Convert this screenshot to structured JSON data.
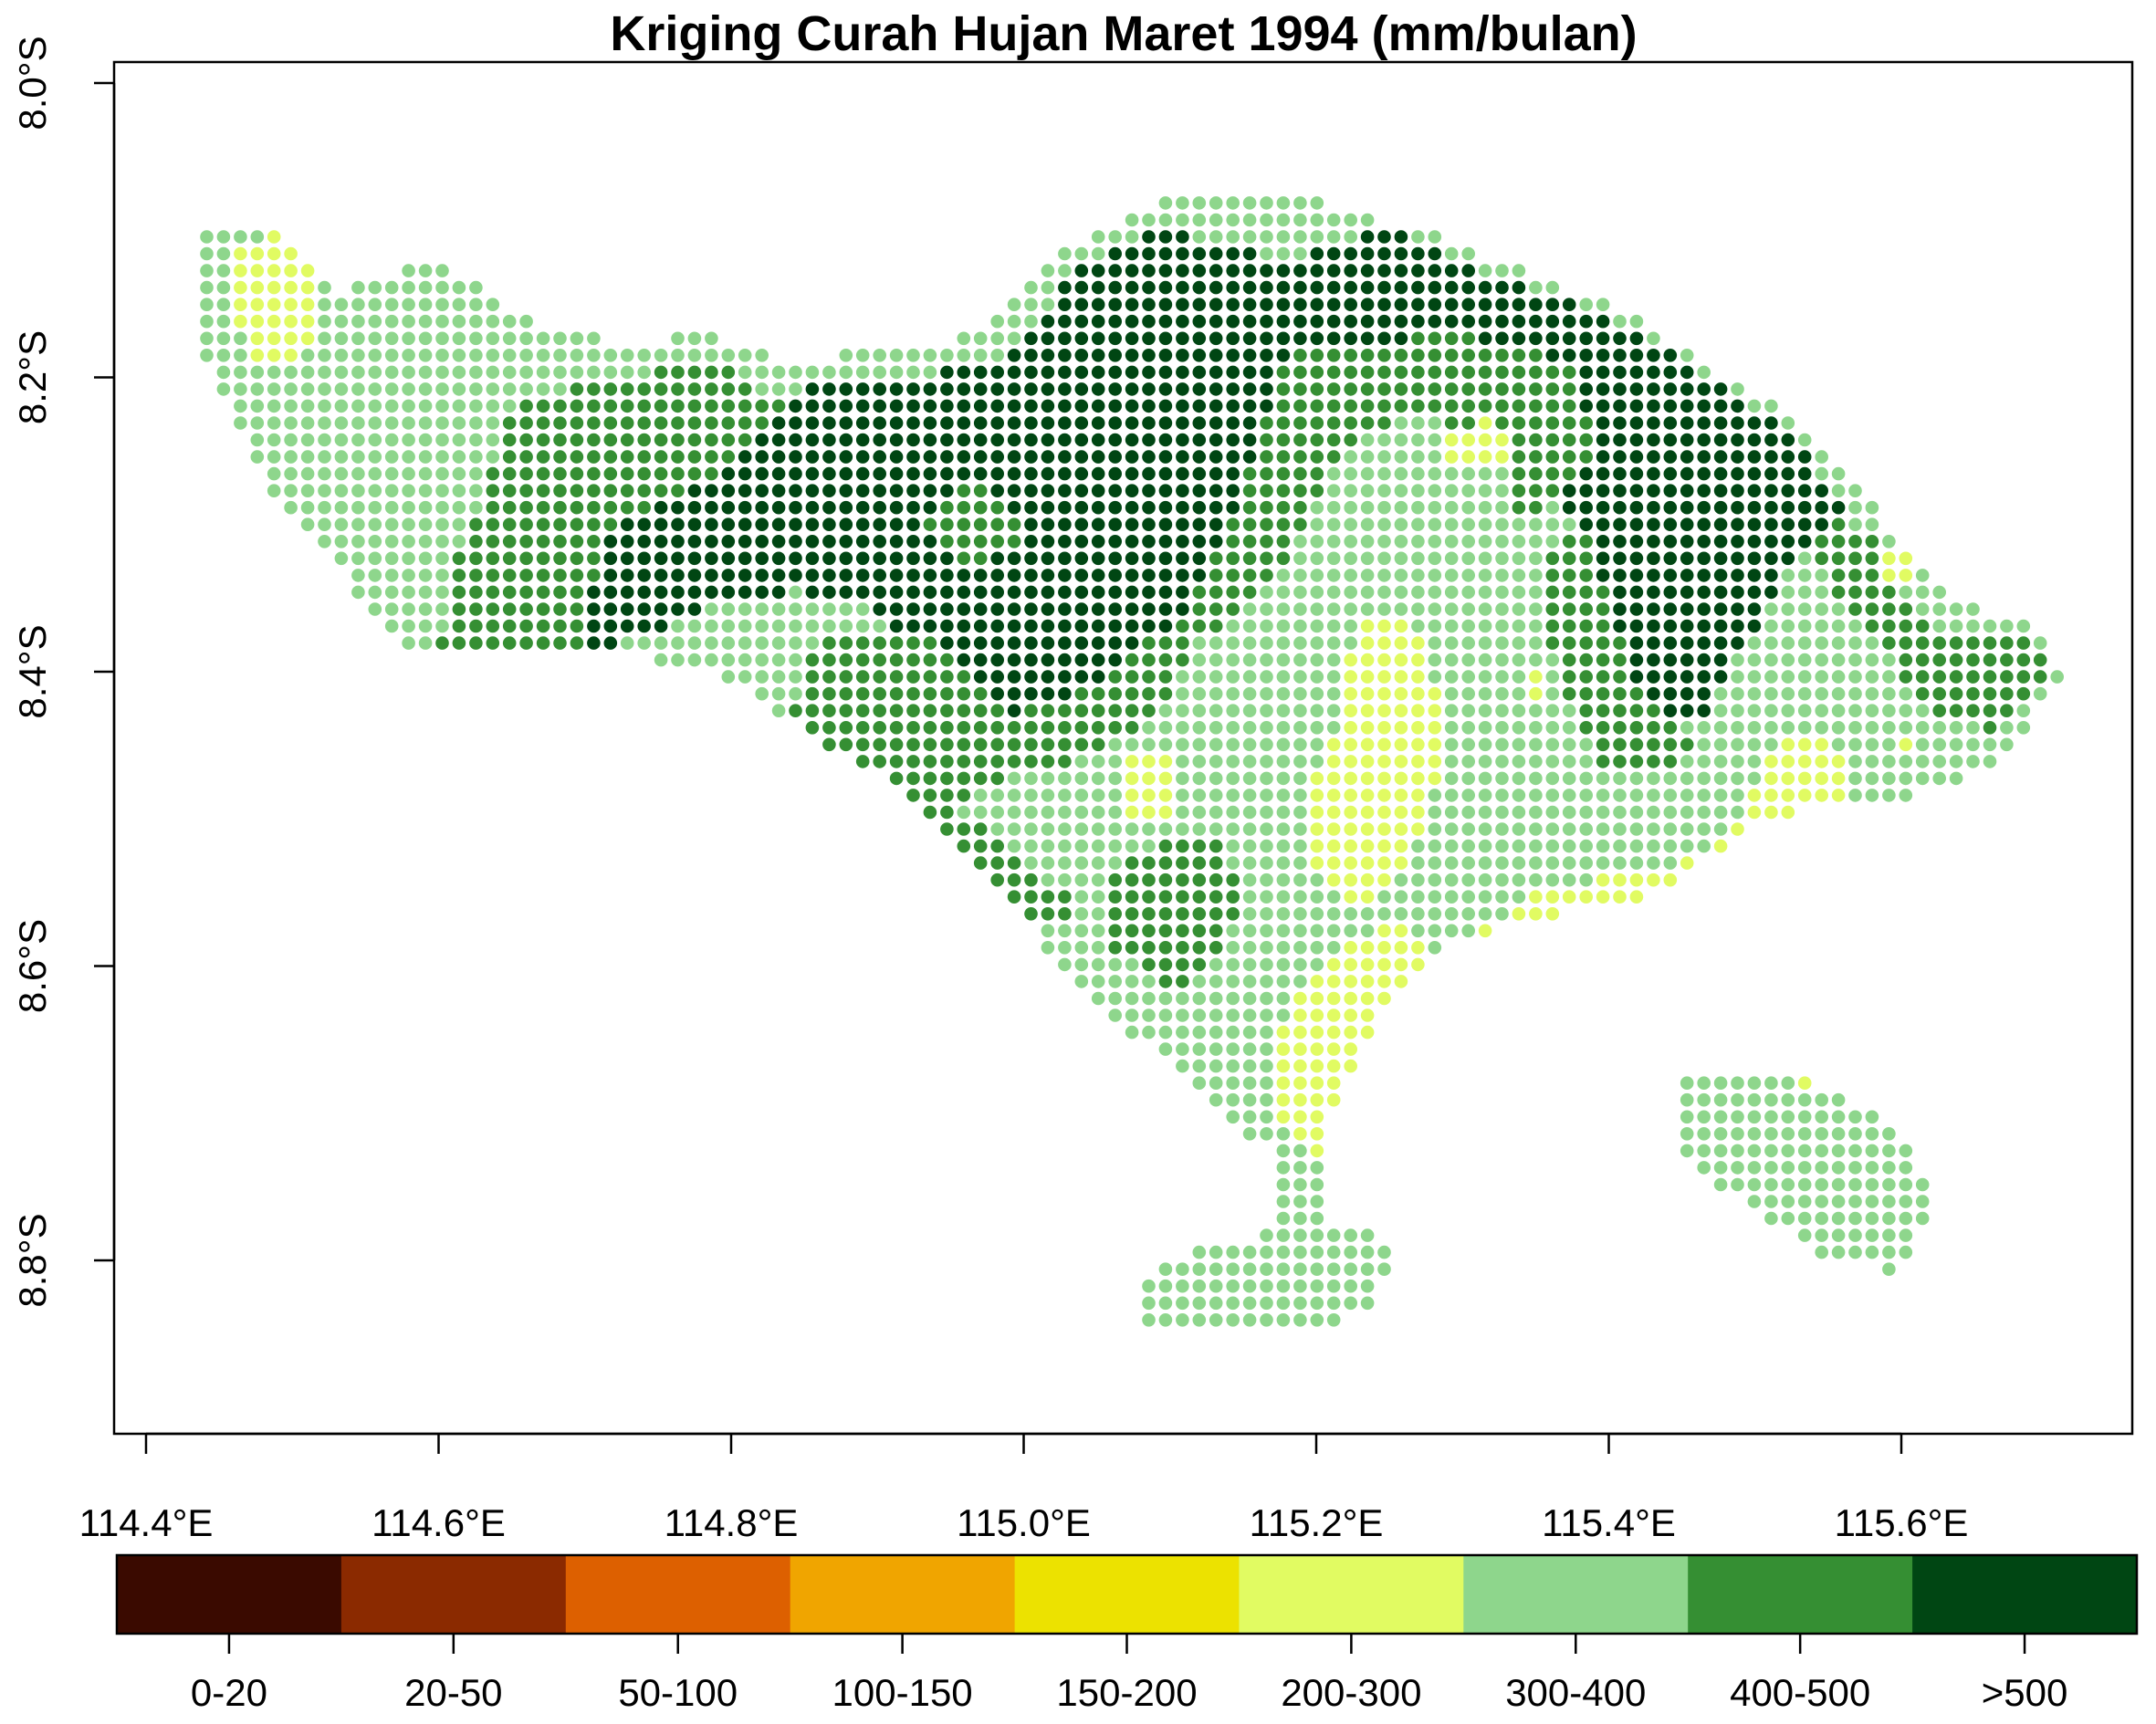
{
  "chart_data": {
    "type": "heatmap",
    "title": "Kriging Curah Hujan Maret 1994 (mm/bulan)",
    "xlabel": "",
    "ylabel": "",
    "xlim": [
      114.365,
      115.75
    ],
    "ylim": [
      -8.93,
      -7.98
    ],
    "x_ticks": [
      114.4,
      114.6,
      114.8,
      115.0,
      115.2,
      115.4,
      115.6
    ],
    "x_tick_labels": [
      "114.4°E",
      "114.6°E",
      "114.8°E",
      "115.0°E",
      "115.2°E",
      "115.4°E",
      "115.6°E"
    ],
    "y_ticks": [
      -8.0,
      -8.2,
      -8.4,
      -8.6,
      -8.8
    ],
    "y_tick_labels": [
      "8.0°S",
      "8.2°S",
      "8.4°S",
      "8.6°S",
      "8.8°S"
    ],
    "grid": false,
    "legend": {
      "position": "bottom",
      "classes": [
        "0-20",
        "20-50",
        "50-100",
        "100-150",
        "150-200",
        "200-300",
        "300-400",
        "400-500",
        ">500"
      ],
      "colors": [
        "#3a0a00",
        "#8b2a00",
        "#dd6000",
        "#f0a500",
        "#ece200",
        "#e1fb62",
        "#8ed68c",
        "#358f33",
        "#004613"
      ]
    },
    "grid_step_deg": 0.0115,
    "land_polygons": [
      [
        [
          114.435,
          -8.1
        ],
        [
          114.49,
          -8.1
        ],
        [
          114.53,
          -8.14
        ],
        [
          114.6,
          -8.12
        ],
        [
          114.66,
          -8.16
        ],
        [
          114.73,
          -8.18
        ],
        [
          114.78,
          -8.17
        ],
        [
          114.84,
          -8.19
        ],
        [
          114.91,
          -8.18
        ],
        [
          114.97,
          -8.17
        ],
        [
          115.02,
          -8.12
        ],
        [
          115.09,
          -8.08
        ],
        [
          115.13,
          -8.07
        ],
        [
          115.2,
          -8.08
        ],
        [
          115.27,
          -8.1
        ],
        [
          115.35,
          -8.13
        ],
        [
          115.42,
          -8.16
        ],
        [
          115.48,
          -8.2
        ],
        [
          115.53,
          -8.23
        ],
        [
          115.58,
          -8.28
        ],
        [
          115.6,
          -8.32
        ],
        [
          115.64,
          -8.35
        ],
        [
          115.69,
          -8.37
        ],
        [
          115.71,
          -8.4
        ],
        [
          115.69,
          -8.43
        ],
        [
          115.67,
          -8.46
        ],
        [
          115.6,
          -8.49
        ],
        [
          115.55,
          -8.49
        ],
        [
          115.5,
          -8.5
        ],
        [
          115.44,
          -8.55
        ],
        [
          115.38,
          -8.56
        ],
        [
          115.3,
          -8.58
        ],
        [
          115.26,
          -8.61
        ],
        [
          115.23,
          -8.66
        ],
        [
          115.21,
          -8.7
        ],
        [
          115.19,
          -8.73
        ],
        [
          115.16,
          -8.72
        ],
        [
          115.12,
          -8.69
        ],
        [
          115.08,
          -8.65
        ],
        [
          115.04,
          -8.62
        ],
        [
          115.01,
          -8.58
        ],
        [
          114.97,
          -8.53
        ],
        [
          114.92,
          -8.48
        ],
        [
          114.85,
          -8.44
        ],
        [
          114.79,
          -8.4
        ],
        [
          114.73,
          -8.39
        ],
        [
          114.65,
          -8.39
        ],
        [
          114.58,
          -8.39
        ],
        [
          114.53,
          -8.33
        ],
        [
          114.48,
          -8.27
        ],
        [
          114.45,
          -8.21
        ],
        [
          114.435,
          -8.17
        ]
      ],
      [
        [
          115.17,
          -8.72
        ],
        [
          115.205,
          -8.72
        ],
        [
          115.2,
          -8.77
        ],
        [
          115.23,
          -8.78
        ],
        [
          115.26,
          -8.79
        ],
        [
          115.24,
          -8.83
        ],
        [
          115.2,
          -8.85
        ],
        [
          115.16,
          -8.85
        ],
        [
          115.12,
          -8.85
        ],
        [
          115.08,
          -8.84
        ],
        [
          115.08,
          -8.81
        ],
        [
          115.12,
          -8.79
        ],
        [
          115.17,
          -8.78
        ]
      ],
      [
        [
          115.44,
          -8.68
        ],
        [
          115.48,
          -8.67
        ],
        [
          115.54,
          -8.68
        ],
        [
          115.58,
          -8.7
        ],
        [
          115.61,
          -8.73
        ],
        [
          115.62,
          -8.77
        ],
        [
          115.6,
          -8.81
        ],
        [
          115.55,
          -8.8
        ],
        [
          115.49,
          -8.76
        ],
        [
          115.45,
          -8.73
        ]
      ]
    ],
    "zones": [
      {
        "class": ">500",
        "polygon": [
          [
            114.71,
            -8.29
          ],
          [
            114.76,
            -8.26
          ],
          [
            114.8,
            -8.22
          ],
          [
            114.86,
            -8.205
          ],
          [
            114.95,
            -8.195
          ],
          [
            115.0,
            -8.18
          ],
          [
            115.03,
            -8.13
          ],
          [
            115.09,
            -8.1
          ],
          [
            115.14,
            -8.11
          ],
          [
            115.18,
            -8.12
          ],
          [
            115.25,
            -8.1
          ],
          [
            115.32,
            -8.13
          ],
          [
            115.4,
            -8.16
          ],
          [
            115.47,
            -8.2
          ],
          [
            115.53,
            -8.24
          ],
          [
            115.56,
            -8.29
          ],
          [
            115.52,
            -8.33
          ],
          [
            115.5,
            -8.37
          ],
          [
            115.48,
            -8.4
          ],
          [
            115.47,
            -8.43
          ],
          [
            115.42,
            -8.44
          ],
          [
            115.4,
            -8.38
          ],
          [
            115.39,
            -8.31
          ],
          [
            115.34,
            -8.26
          ],
          [
            115.3,
            -8.22
          ],
          [
            115.23,
            -8.21
          ],
          [
            115.21,
            -8.25
          ],
          [
            115.18,
            -8.31
          ],
          [
            115.14,
            -8.36
          ],
          [
            115.1,
            -8.4
          ],
          [
            115.05,
            -8.43
          ],
          [
            114.98,
            -8.44
          ],
          [
            114.95,
            -8.4
          ],
          [
            114.9,
            -8.36
          ],
          [
            114.85,
            -8.345
          ],
          [
            114.8,
            -8.35
          ],
          [
            114.75,
            -8.37
          ],
          [
            114.7,
            -8.39
          ],
          [
            114.67,
            -8.35
          ],
          [
            114.68,
            -8.31
          ]
        ]
      },
      {
        "class": "400-500",
        "polygon": [
          [
            114.63,
            -8.28
          ],
          [
            114.65,
            -8.22
          ],
          [
            114.72,
            -8.2
          ],
          [
            114.79,
            -8.19
          ],
          [
            114.84,
            -8.22
          ],
          [
            114.79,
            -8.27
          ],
          [
            114.72,
            -8.3
          ],
          [
            114.7,
            -8.36
          ],
          [
            114.7,
            -8.395
          ],
          [
            114.6,
            -8.395
          ],
          [
            114.61,
            -8.33
          ]
        ]
      },
      {
        "class": "400-500",
        "polygon": [
          [
            115.18,
            -8.18
          ],
          [
            115.3,
            -8.17
          ],
          [
            115.38,
            -8.19
          ],
          [
            115.39,
            -8.26
          ],
          [
            115.34,
            -8.3
          ],
          [
            115.33,
            -8.26
          ],
          [
            115.27,
            -8.22
          ],
          [
            115.22,
            -8.25
          ],
          [
            115.19,
            -8.3
          ],
          [
            115.17,
            -8.34
          ],
          [
            115.12,
            -8.38
          ],
          [
            115.09,
            -8.43
          ],
          [
            115.04,
            -8.46
          ],
          [
            114.99,
            -8.47
          ],
          [
            114.95,
            -8.49
          ],
          [
            115.0,
            -8.53
          ],
          [
            115.04,
            -8.56
          ],
          [
            115.0,
            -8.58
          ],
          [
            114.96,
            -8.55
          ],
          [
            114.9,
            -8.48
          ],
          [
            114.84,
            -8.44
          ],
          [
            114.86,
            -8.37
          ],
          [
            114.93,
            -8.37
          ],
          [
            114.99,
            -8.43
          ],
          [
            115.05,
            -8.41
          ],
          [
            115.11,
            -8.36
          ],
          [
            115.14,
            -8.3
          ],
          [
            115.16,
            -8.24
          ]
        ]
      },
      {
        "class": "400-500",
        "polygon": [
          [
            114.935,
            -8.3
          ],
          [
            114.96,
            -8.27
          ],
          [
            114.99,
            -8.28
          ],
          [
            115.0,
            -8.31
          ],
          [
            114.97,
            -8.33
          ],
          [
            114.94,
            -8.32
          ]
        ]
      },
      {
        "class": "400-500",
        "polygon": [
          [
            115.36,
            -8.32
          ],
          [
            115.39,
            -8.3
          ],
          [
            115.4,
            -8.36
          ],
          [
            115.42,
            -8.41
          ],
          [
            115.46,
            -8.45
          ],
          [
            115.44,
            -8.47
          ],
          [
            115.39,
            -8.46
          ],
          [
            115.37,
            -8.41
          ],
          [
            115.35,
            -8.36
          ]
        ]
      },
      {
        "class": "400-500",
        "polygon": [
          [
            115.55,
            -8.29
          ],
          [
            115.58,
            -8.31
          ],
          [
            115.59,
            -8.34
          ],
          [
            115.63,
            -8.38
          ],
          [
            115.68,
            -8.375
          ],
          [
            115.71,
            -8.39
          ],
          [
            115.69,
            -8.42
          ],
          [
            115.66,
            -8.44
          ],
          [
            115.62,
            -8.425
          ],
          [
            115.59,
            -8.39
          ],
          [
            115.56,
            -8.36
          ],
          [
            115.54,
            -8.32
          ]
        ]
      },
      {
        "class": "400-500",
        "polygon": [
          [
            115.07,
            -8.53
          ],
          [
            115.11,
            -8.51
          ],
          [
            115.14,
            -8.52
          ],
          [
            115.15,
            -8.56
          ],
          [
            115.13,
            -8.6
          ],
          [
            115.1,
            -8.615
          ],
          [
            115.06,
            -8.59
          ],
          [
            115.05,
            -8.56
          ]
        ]
      },
      {
        "class": "200-300",
        "polygon": [
          [
            114.46,
            -8.11
          ],
          [
            114.49,
            -8.1
          ],
          [
            114.51,
            -8.12
          ],
          [
            114.52,
            -8.17
          ],
          [
            114.5,
            -8.19
          ],
          [
            114.47,
            -8.185
          ],
          [
            114.455,
            -8.15
          ]
        ]
      },
      {
        "class": "200-300",
        "polygon": [
          [
            115.23,
            -8.36
          ],
          [
            115.26,
            -8.36
          ],
          [
            115.28,
            -8.4
          ],
          [
            115.29,
            -8.46
          ],
          [
            115.27,
            -8.51
          ],
          [
            115.25,
            -8.55
          ],
          [
            115.22,
            -8.56
          ],
          [
            115.19,
            -8.53
          ],
          [
            115.19,
            -8.49
          ],
          [
            115.21,
            -8.45
          ],
          [
            115.22,
            -8.4
          ]
        ]
      },
      {
        "class": "200-300",
        "polygon": [
          [
            115.22,
            -8.58
          ],
          [
            115.26,
            -8.57
          ],
          [
            115.28,
            -8.6
          ],
          [
            115.31,
            -8.58
          ],
          [
            115.35,
            -8.55
          ],
          [
            115.4,
            -8.54
          ],
          [
            115.45,
            -8.53
          ],
          [
            115.49,
            -8.5
          ],
          [
            115.51,
            -8.45
          ],
          [
            115.545,
            -8.44
          ],
          [
            115.565,
            -8.47
          ],
          [
            115.56,
            -8.515
          ],
          [
            115.5,
            -8.52
          ],
          [
            115.47,
            -8.55
          ],
          [
            115.42,
            -8.57
          ],
          [
            115.37,
            -8.575
          ],
          [
            115.33,
            -8.59
          ],
          [
            115.29,
            -8.62
          ],
          [
            115.27,
            -8.66
          ],
          [
            115.25,
            -8.71
          ],
          [
            115.22,
            -8.735
          ],
          [
            115.18,
            -8.72
          ],
          [
            115.17,
            -8.68
          ],
          [
            115.18,
            -8.63
          ]
        ]
      },
      {
        "class": "200-300",
        "polygon": [
          [
            115.07,
            -8.46
          ],
          [
            115.1,
            -8.46
          ],
          [
            115.105,
            -8.49
          ],
          [
            115.08,
            -8.51
          ],
          [
            115.065,
            -8.49
          ]
        ]
      },
      {
        "class": "200-300",
        "polygon": [
          [
            115.29,
            -8.235
          ],
          [
            115.325,
            -8.225
          ],
          [
            115.33,
            -8.255
          ],
          [
            115.29,
            -8.26
          ]
        ]
      },
      {
        "class": "200-300",
        "polygon": [
          [
            115.58,
            -8.32
          ],
          [
            115.6,
            -8.31
          ],
          [
            115.615,
            -8.34
          ],
          [
            115.59,
            -8.345
          ]
        ]
      },
      {
        "class": "200-300",
        "polygon": [
          [
            115.345,
            -8.4
          ],
          [
            115.36,
            -8.4
          ],
          [
            115.36,
            -8.42
          ],
          [
            115.345,
            -8.42
          ]
        ]
      },
      {
        "class": "200-300",
        "polygon": [
          [
            115.595,
            -8.44
          ],
          [
            115.61,
            -8.44
          ],
          [
            115.61,
            -8.46
          ],
          [
            115.595,
            -8.46
          ]
        ]
      },
      {
        "class": "200-300",
        "polygon": [
          [
            115.525,
            -8.675
          ],
          [
            115.55,
            -8.675
          ],
          [
            115.55,
            -8.69
          ],
          [
            115.525,
            -8.69
          ]
        ]
      }
    ]
  }
}
